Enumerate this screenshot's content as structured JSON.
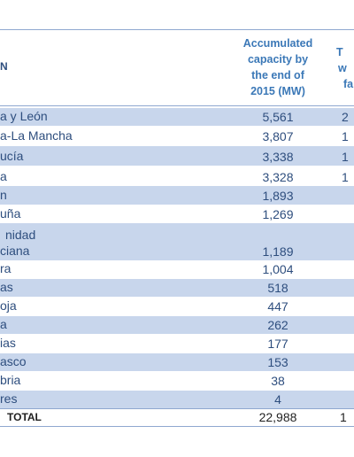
{
  "header": {
    "region_col": "N",
    "capacity_col_lines": [
      "Accumulated",
      "capacity by",
      "the end of",
      "2015 (MW)"
    ],
    "next_col_lines": [
      "T",
      "w",
      "fa"
    ]
  },
  "rows": [
    {
      "region": "a y León",
      "capacity": "5,561",
      "extra": "2"
    },
    {
      "region": "a-La Mancha",
      "capacity": "3,807",
      "extra": "1"
    },
    {
      "region": "ucía",
      "capacity": "3,338",
      "extra": "1"
    },
    {
      "region": "a",
      "capacity": "3,328",
      "extra": "1"
    },
    {
      "region": "n",
      "capacity": "1,893",
      "extra": ""
    },
    {
      "region": "uña",
      "capacity": "1,269",
      "extra": ""
    },
    {
      "region": "nidad",
      "region2": "ciana",
      "capacity": "1,189",
      "extra": ""
    },
    {
      "region": "ra",
      "capacity": "1,004",
      "extra": ""
    },
    {
      "region": "as",
      "capacity": "518",
      "extra": ""
    },
    {
      "region": "oja",
      "capacity": "447",
      "extra": ""
    },
    {
      "region": "a",
      "capacity": "262",
      "extra": ""
    },
    {
      "region": "ias",
      "capacity": "177",
      "extra": ""
    },
    {
      "region": "asco",
      "capacity": "153",
      "extra": ""
    },
    {
      "region": "bria",
      "capacity": "38",
      "extra": ""
    },
    {
      "region": "res",
      "capacity": "4",
      "extra": ""
    }
  ],
  "total": {
    "label": "TOTAL",
    "capacity": "22,988",
    "extra": "1"
  }
}
